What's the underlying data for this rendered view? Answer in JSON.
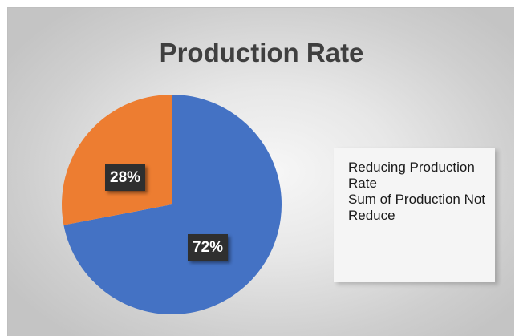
{
  "chart_data": {
    "type": "pie",
    "title": "Production Rate",
    "slices": [
      {
        "label": "Reducing Production Rate",
        "value": 72,
        "data_label": "72%",
        "color": "#4472c4"
      },
      {
        "label": "Sum of Production Not Reduce",
        "value": 28,
        "data_label": "28%",
        "color": "#ed7d31"
      }
    ],
    "legend": {
      "placement": "right",
      "entries": [
        "Reducing Production Rate",
        "Sum of Production Not Reduce"
      ]
    },
    "background": "#d9d9d9"
  }
}
